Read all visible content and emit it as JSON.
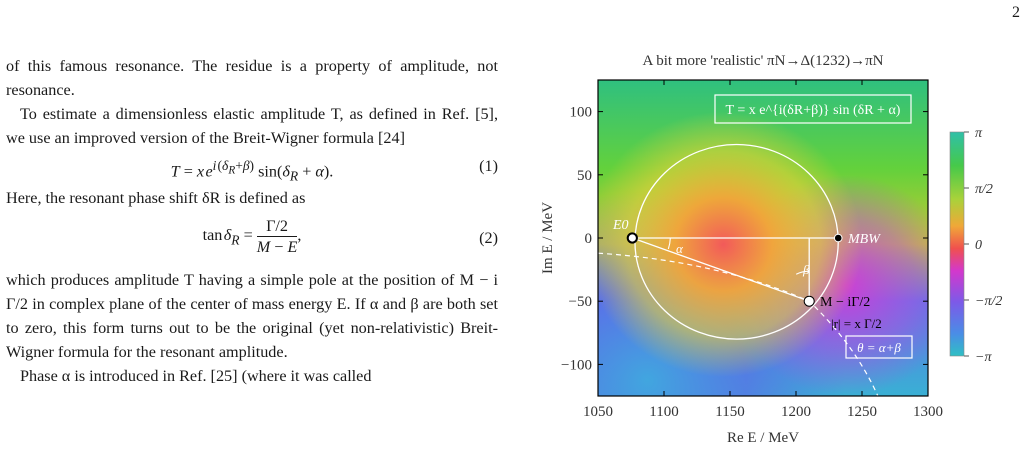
{
  "page_number": "2",
  "text": {
    "p1": "of this famous resonance. The residue is a property of amplitude, not resonance.",
    "p2": "To estimate a dimensionless elastic amplitude T, as defined in Ref. [5], we use an improved version of the Breit-Wigner formula [24]",
    "eq1_number": "(1)",
    "p3": "Here, the resonant phase shift δR is defined as",
    "eq2_number": "(2)",
    "p4": "which produces amplitude T having a simple pole at the position of M − i Γ/2 in complex plane of the center of mass energy E. If α and β are both set to zero, this form turns out to be the original (yet non-relativistic) Breit-Wigner formula for the resonant amplitude.",
    "p5": "Phase α is introduced in Ref. [25] (where it was called"
  },
  "figure": {
    "title": "A bit more 'realistic' πN→Δ(1232)→πN",
    "formula_box": "T = x e^{i(δR+β)} sin (δR + α)",
    "x_label": "Re E / MeV",
    "y_label": "Im E / MeV",
    "x_ticks": [
      "1050",
      "1100",
      "1150",
      "1200",
      "1250",
      "1300"
    ],
    "y_ticks": [
      "100",
      "50",
      "0",
      "−50",
      "−100"
    ],
    "label_E0": "E0",
    "label_MBW": "MBW",
    "label_alpha": "α",
    "label_beta": "β",
    "label_pole": "M − iΓ/2",
    "label_radius": "|r| = x Γ/2",
    "label_theta": "θ = α+β",
    "colorbar_ticks": [
      "π",
      "π/2",
      "0",
      "−π/2",
      "−π"
    ]
  },
  "chart_data": {
    "type": "heatmap",
    "title": "A bit more 'realistic' πN→Δ(1232)→πN",
    "xlabel": "Re E / MeV",
    "ylabel": "Im E / MeV",
    "xlim": [
      1050,
      1300
    ],
    "ylim": [
      -125,
      125
    ],
    "colorbar_range": [
      "−π",
      "π"
    ],
    "colorbar_label_values": [
      "−π",
      "−π/2",
      "0",
      "π/2",
      "π"
    ],
    "points": [
      {
        "name": "E0",
        "x": 1076,
        "y": 0
      },
      {
        "name": "MBW",
        "x": 1232,
        "y": 0
      },
      {
        "name": "M − iΓ/2",
        "x": 1210,
        "y": -50
      }
    ],
    "circle": {
      "center": [
        1155,
        -3
      ],
      "radius": 77
    }
  },
  "colors": {
    "pole_marker": "#ffffff",
    "marker_edge": "#000000",
    "overlay_lines": "#ffffff",
    "frame": "#000000"
  }
}
